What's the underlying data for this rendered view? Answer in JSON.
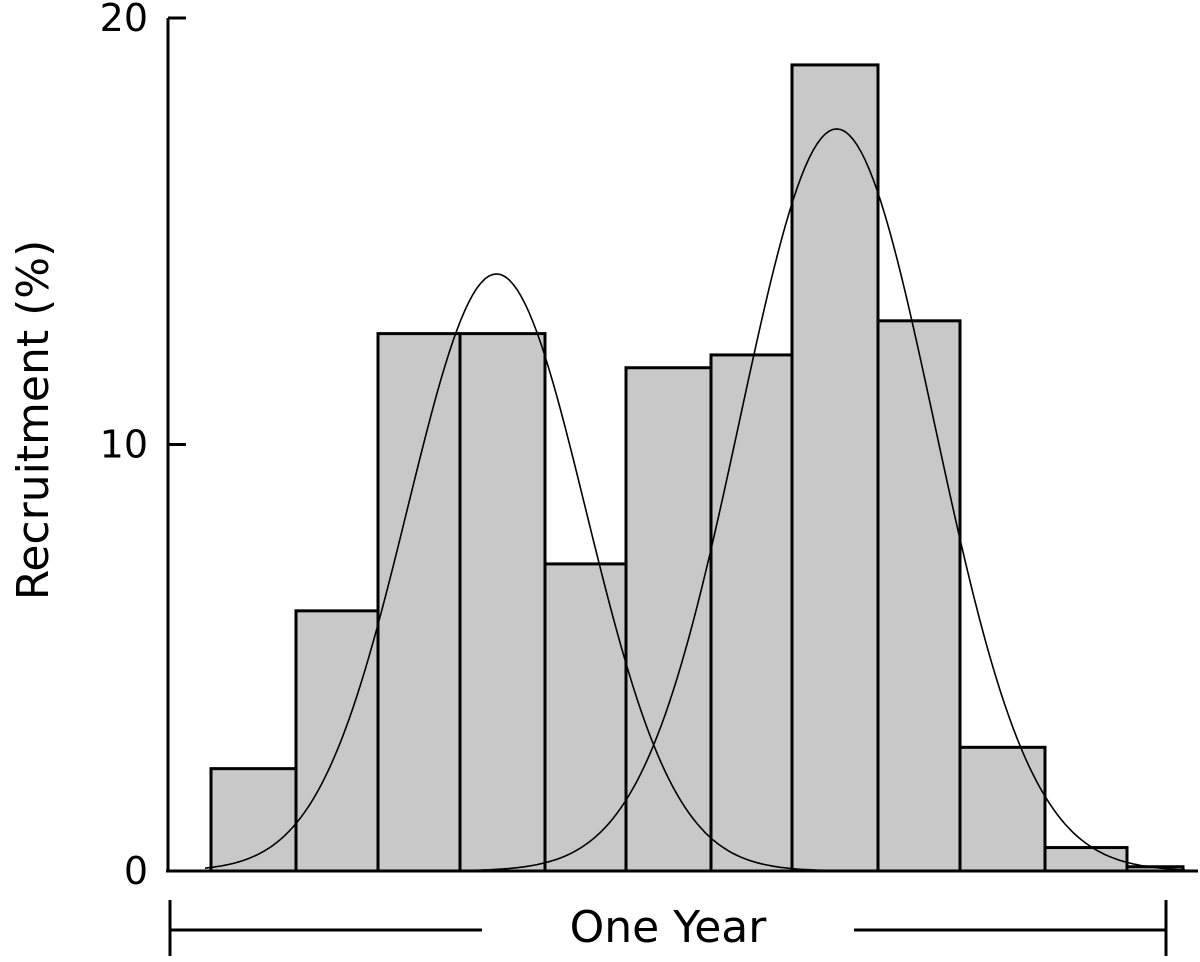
{
  "chart_data": {
    "type": "bar",
    "ylabel": "Recruitment (%)",
    "xlabel": "",
    "span_label": "One Year",
    "ylim": [
      0,
      20
    ],
    "yticks": [
      "0",
      "10",
      "20"
    ],
    "grid": false,
    "legend": "none",
    "bar_color": "#c8c8c8",
    "edge_color": "#000000",
    "series": [
      {
        "values": [
          2.4,
          6.1,
          12.6,
          12.6,
          7.2,
          11.8,
          12.1,
          18.9,
          12.9,
          2.9,
          0.55,
          0.1
        ]
      }
    ],
    "curves": [
      {
        "peak": 14.0,
        "center_bin": 3.0,
        "sd_bins": 1.1
      },
      {
        "peak": 17.4,
        "center_bin": 7.2,
        "sd_bins": 1.2
      }
    ]
  }
}
